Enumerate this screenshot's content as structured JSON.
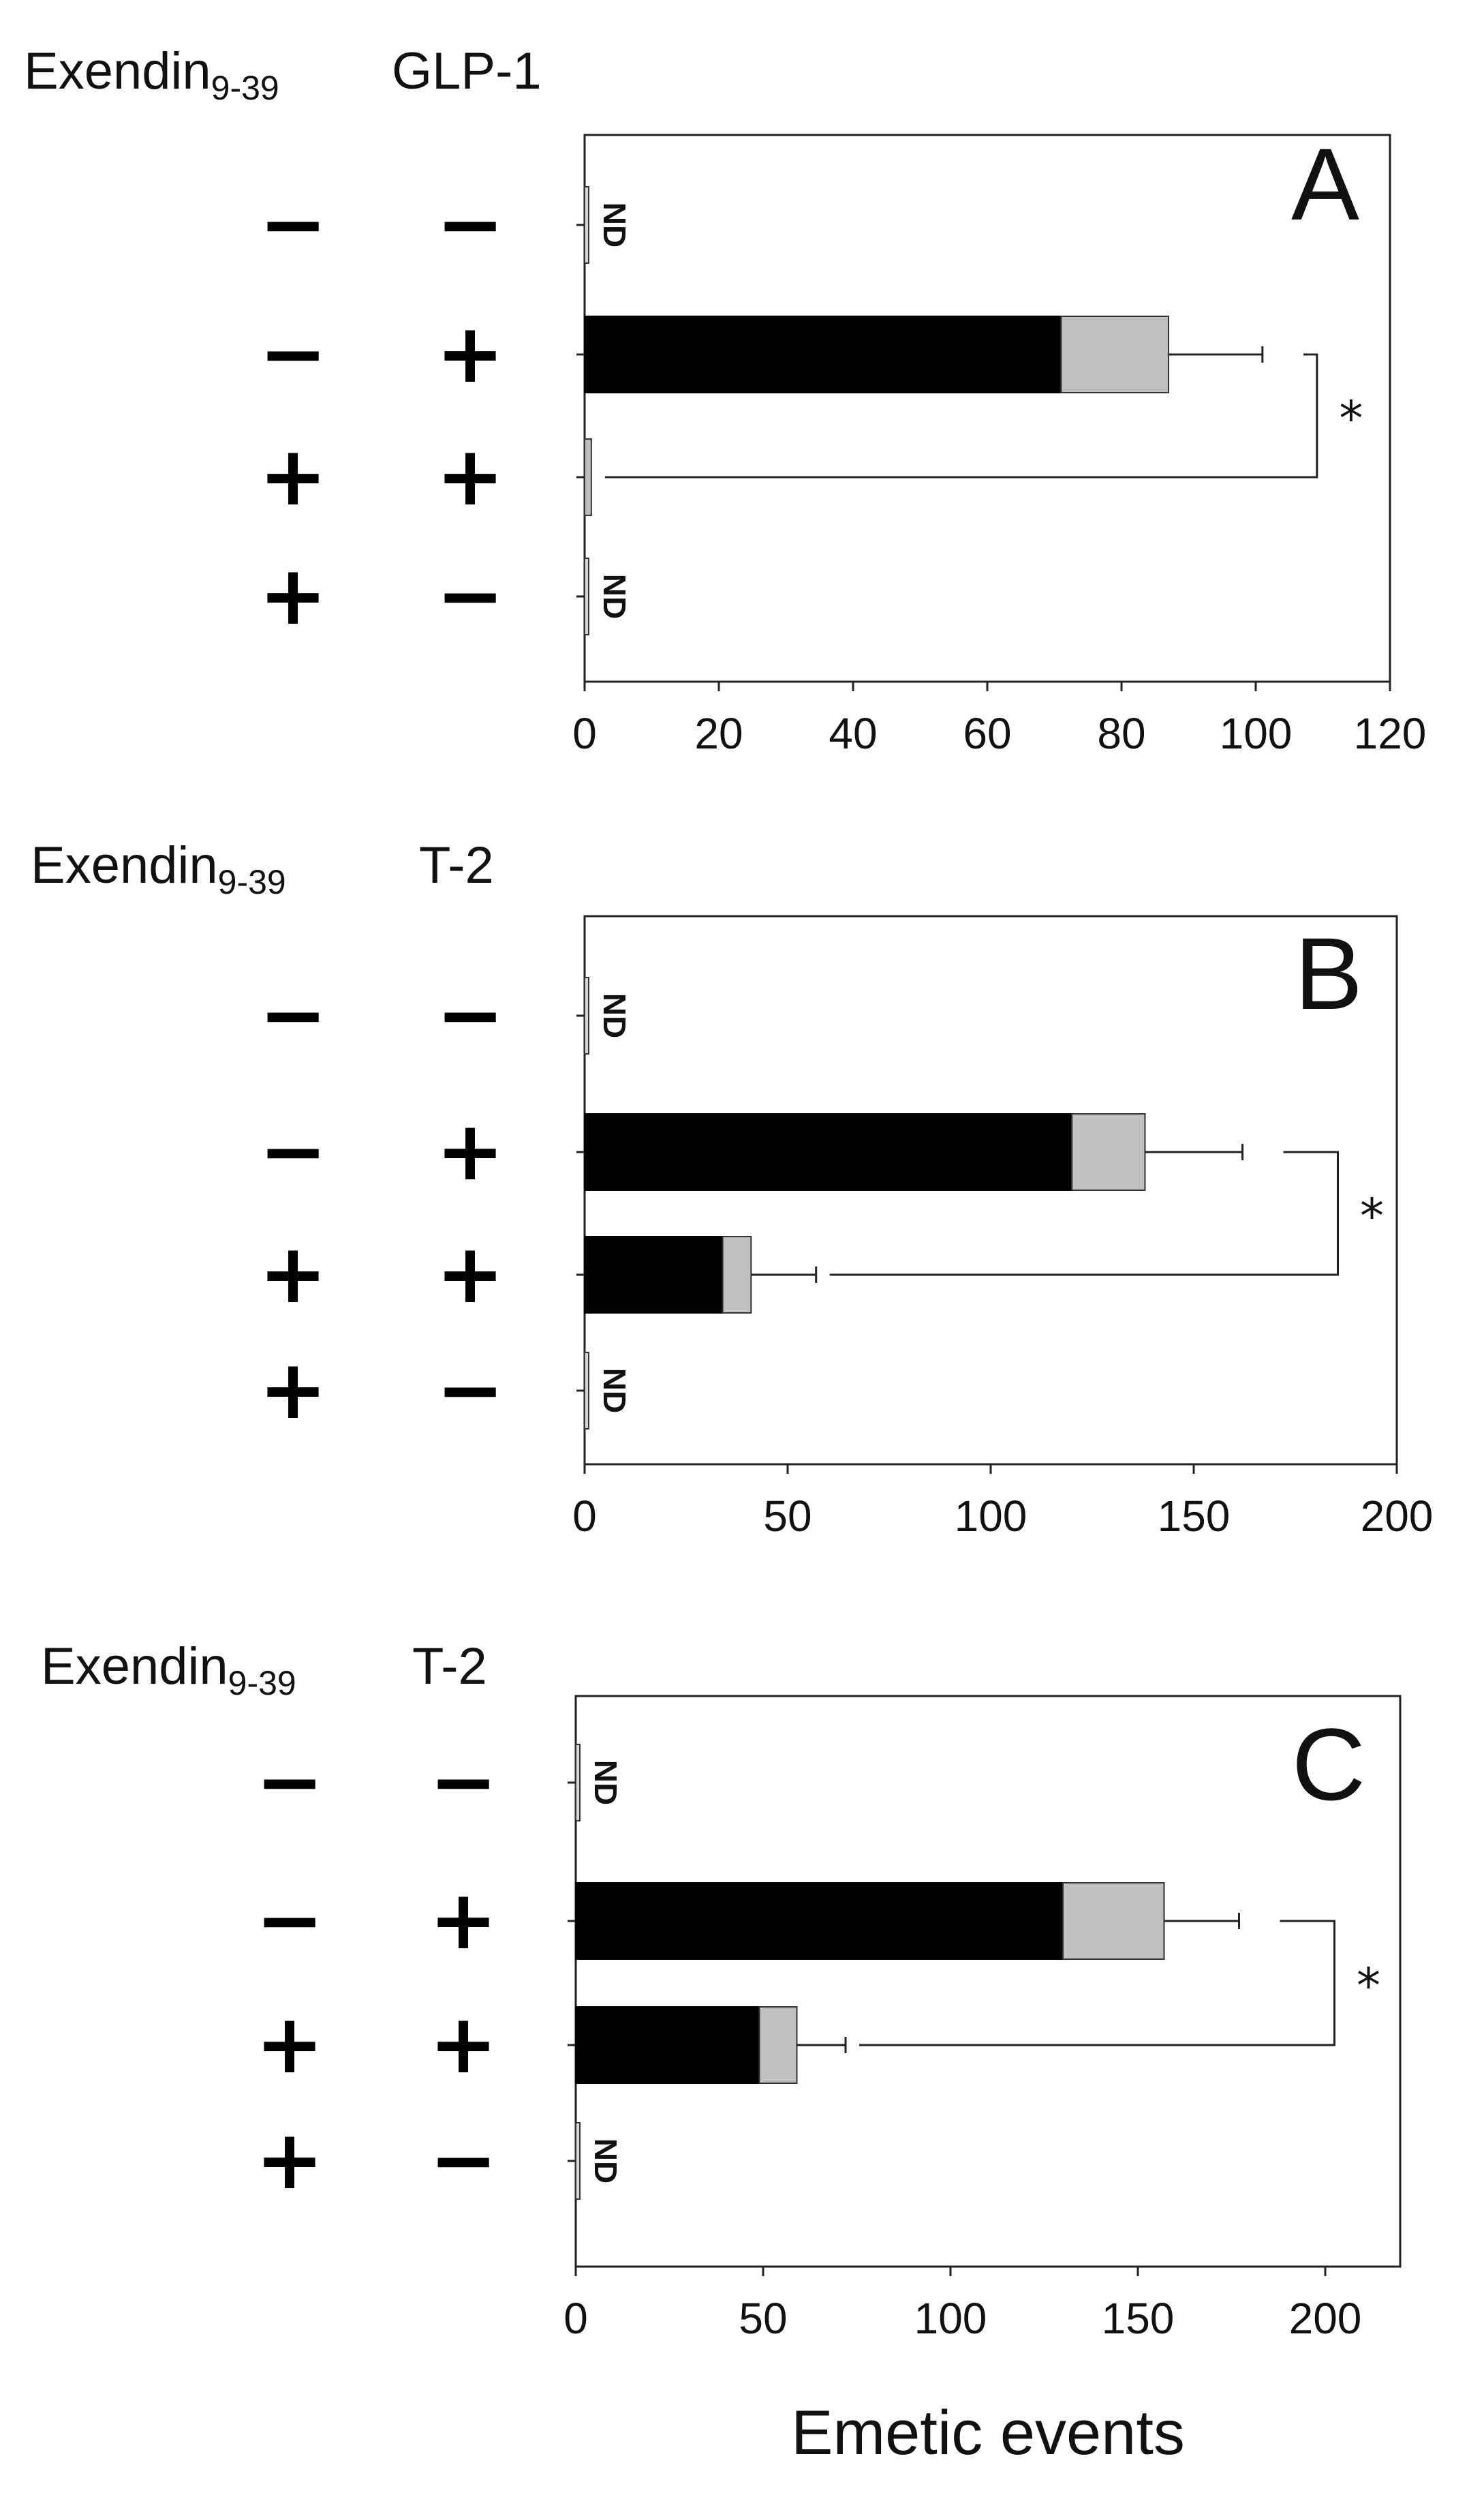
{
  "xlabel": "Emetic events",
  "colors": {
    "stack1": "#000000",
    "stack2": "#c0c0c0",
    "axis": "#111111"
  },
  "chart_data": [
    {
      "type": "bar",
      "orientation": "horizontal",
      "stacked": true,
      "panel": "A",
      "column_headers": {
        "left_main": "Exendin",
        "left_sub": "9-39",
        "right": "GLP-1"
      },
      "rows": [
        {
          "left": "−",
          "right": "−",
          "nd": "ND"
        },
        {
          "left": "−",
          "right": "+",
          "nd": ""
        },
        {
          "left": "+",
          "right": "+",
          "nd": ""
        },
        {
          "left": "+",
          "right": "−",
          "nd": "ND"
        }
      ],
      "series": [
        {
          "values": [
            0,
            71,
            0,
            0
          ]
        },
        {
          "values": [
            0,
            16,
            1,
            0
          ]
        }
      ],
      "error": [
        0,
        14,
        0,
        0
      ],
      "significance": {
        "rows": [
          1,
          2
        ],
        "label": "*"
      },
      "xlim": [
        0,
        120
      ],
      "xticks": [
        0,
        20,
        40,
        60,
        80,
        100,
        120
      ]
    },
    {
      "type": "bar",
      "orientation": "horizontal",
      "stacked": true,
      "panel": "B",
      "column_headers": {
        "left_main": "Exendin",
        "left_sub": "9-39",
        "right": "T-2"
      },
      "rows": [
        {
          "left": "−",
          "right": "−",
          "nd": "ND"
        },
        {
          "left": "−",
          "right": "+",
          "nd": ""
        },
        {
          "left": "+",
          "right": "+",
          "nd": ""
        },
        {
          "left": "+",
          "right": "−",
          "nd": "ND"
        }
      ],
      "series": [
        {
          "values": [
            0,
            120,
            34,
            0
          ]
        },
        {
          "values": [
            0,
            18,
            7,
            0
          ]
        }
      ],
      "error": [
        0,
        24,
        16,
        0
      ],
      "significance": {
        "rows": [
          1,
          2
        ],
        "label": "*"
      },
      "xlim": [
        0,
        200
      ],
      "xticks": [
        0,
        50,
        100,
        150,
        200
      ]
    },
    {
      "type": "bar",
      "orientation": "horizontal",
      "stacked": true,
      "panel": "C",
      "column_headers": {
        "left_main": "Exendin",
        "left_sub": "9-39",
        "right": "T-2"
      },
      "rows": [
        {
          "left": "−",
          "right": "−",
          "nd": "ND"
        },
        {
          "left": "−",
          "right": "+",
          "nd": ""
        },
        {
          "left": "+",
          "right": "+",
          "nd": ""
        },
        {
          "left": "+",
          "right": "−",
          "nd": "ND"
        }
      ],
      "series": [
        {
          "values": [
            0,
            130,
            49,
            0
          ]
        },
        {
          "values": [
            0,
            27,
            10,
            0
          ]
        }
      ],
      "error": [
        0,
        20,
        13,
        0
      ],
      "significance": {
        "rows": [
          1,
          2
        ],
        "label": "*"
      },
      "xlim": [
        0,
        220
      ],
      "xticks": [
        0,
        50,
        100,
        150,
        200
      ]
    }
  ]
}
